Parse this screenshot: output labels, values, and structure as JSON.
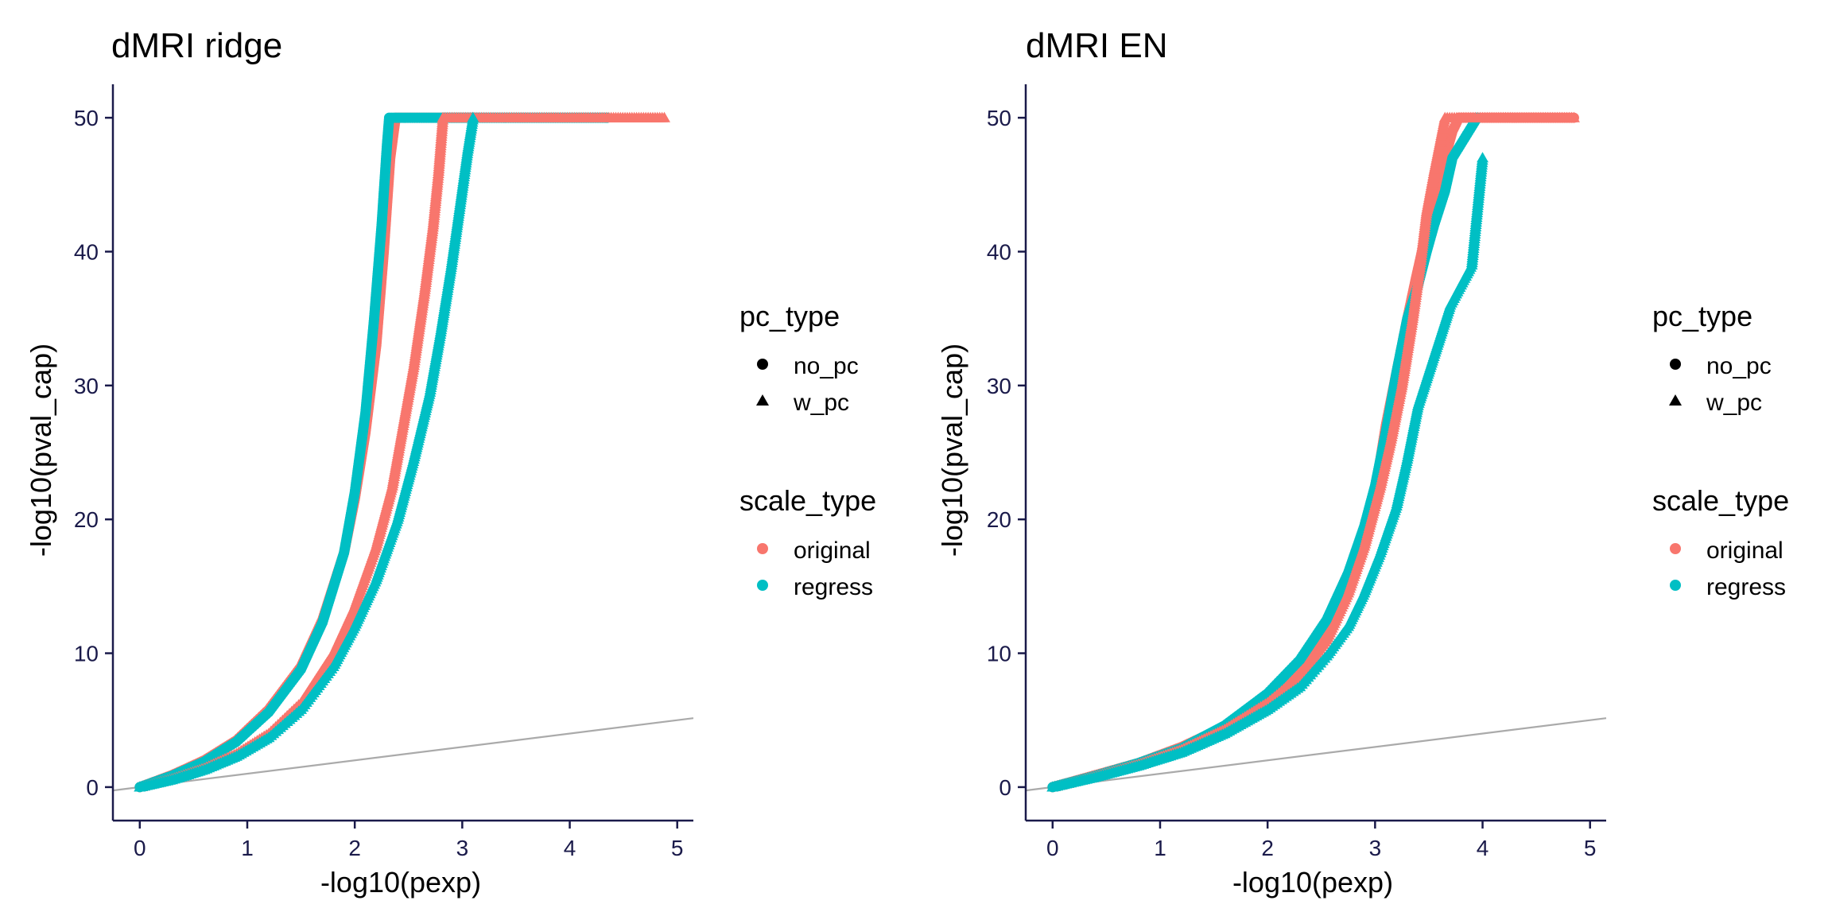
{
  "chart_data": [
    {
      "type": "scatter",
      "title": "dMRI ridge",
      "xlabel": "-log10(pexp)",
      "ylabel": "-log10(pval_cap)",
      "xlim": [
        -0.25,
        5.15
      ],
      "ylim": [
        -2.5,
        52.5
      ],
      "xticks": [
        "0",
        "1",
        "2",
        "3",
        "4",
        "5"
      ],
      "yticks": [
        "0",
        "10",
        "20",
        "30",
        "40",
        "50"
      ],
      "reference_line": {
        "x": [
          -0.25,
          5.15
        ],
        "y": [
          -0.25,
          5.15
        ],
        "color": "#aaaaaa"
      },
      "series": [
        {
          "name": "original / no_pc",
          "shape": "circle",
          "color": "#F8766D",
          "x": [
            0,
            0.3,
            0.6,
            0.9,
            1.2,
            1.5,
            1.7,
            1.9,
            2.0,
            2.1,
            2.2,
            2.27,
            2.33,
            2.38,
            2.42,
            2.5,
            2.6,
            2.8,
            3.0,
            3.1
          ],
          "y": [
            0,
            0.9,
            2.0,
            3.5,
            5.8,
            9.0,
            12.5,
            17.5,
            21.5,
            26.5,
            33,
            40,
            47,
            50,
            50,
            50,
            50,
            50,
            50,
            50
          ]
        },
        {
          "name": "regress / no_pc",
          "shape": "circle",
          "color": "#00BFC4",
          "x": [
            0,
            0.3,
            0.6,
            0.9,
            1.2,
            1.5,
            1.7,
            1.9,
            2.0,
            2.1,
            2.18,
            2.25,
            2.3,
            2.32,
            3.1,
            4.35
          ],
          "y": [
            0,
            0.85,
            1.9,
            3.4,
            5.6,
            8.8,
            12.3,
            17.5,
            22,
            28,
            35,
            42,
            48,
            50,
            50,
            50
          ]
        },
        {
          "name": "original / w_pc",
          "shape": "triangle",
          "color": "#F8766D",
          "x": [
            0,
            0.3,
            0.6,
            0.9,
            1.2,
            1.5,
            1.8,
            2.0,
            2.2,
            2.35,
            2.45,
            2.55,
            2.65,
            2.73,
            2.78,
            2.82,
            3.2,
            4.0,
            4.3,
            4.6,
            4.88
          ],
          "y": [
            0,
            0.6,
            1.4,
            2.5,
            4.0,
            6.3,
            10,
            13.5,
            18,
            22.5,
            27,
            31.5,
            37,
            42,
            46,
            50,
            50,
            50,
            50,
            50,
            50
          ]
        },
        {
          "name": "regress / w_pc",
          "shape": "triangle",
          "color": "#00BFC4",
          "x": [
            0,
            0.3,
            0.6,
            0.9,
            1.2,
            1.5,
            1.8,
            2.0,
            2.2,
            2.4,
            2.55,
            2.7,
            2.8,
            2.9,
            2.98,
            3.05,
            3.1
          ],
          "y": [
            0,
            0.55,
            1.3,
            2.3,
            3.7,
            5.8,
            9,
            12,
            15.5,
            20,
            24.5,
            29.5,
            34,
            39,
            43.5,
            47.5,
            50
          ]
        }
      ]
    },
    {
      "type": "scatter",
      "title": "dMRI EN",
      "xlabel": "-log10(pexp)",
      "ylabel": "-log10(pval_cap)",
      "xlim": [
        -0.25,
        5.15
      ],
      "ylim": [
        -2.5,
        52.5
      ],
      "xticks": [
        "0",
        "1",
        "2",
        "3",
        "4",
        "5"
      ],
      "yticks": [
        "0",
        "10",
        "20",
        "30",
        "40",
        "50"
      ],
      "reference_line": {
        "x": [
          -0.25,
          5.15
        ],
        "y": [
          -0.25,
          5.15
        ],
        "color": "#aaaaaa"
      },
      "series": [
        {
          "name": "original / no_pc",
          "shape": "circle",
          "color": "#F8766D",
          "x": [
            0,
            0.4,
            0.8,
            1.2,
            1.6,
            2.0,
            2.3,
            2.55,
            2.75,
            2.9,
            3.0,
            3.1,
            3.2,
            3.3,
            3.38,
            3.45,
            3.52,
            3.6,
            3.65,
            3.72,
            3.78,
            4.0,
            4.4,
            4.85
          ],
          "y": [
            0,
            0.9,
            1.8,
            3.0,
            4.5,
            6.5,
            8.7,
            11.5,
            15,
            18,
            22,
            27,
            31,
            35,
            38,
            40.5,
            42,
            45,
            47,
            49,
            50,
            50,
            50,
            50
          ]
        },
        {
          "name": "regress / no_pc",
          "shape": "circle",
          "color": "#00BFC4",
          "x": [
            0,
            0.4,
            0.8,
            1.2,
            1.6,
            2.0,
            2.3,
            2.55,
            2.75,
            2.9,
            3.0,
            3.1,
            3.2,
            3.3,
            3.4,
            3.48,
            3.55,
            3.65,
            3.72,
            3.95
          ],
          "y": [
            0,
            0.85,
            1.8,
            2.9,
            4.6,
            7.0,
            9.5,
            12.5,
            16,
            19.5,
            22.5,
            26.5,
            31,
            35,
            37.5,
            40,
            42,
            44.5,
            47,
            50
          ]
        },
        {
          "name": "original / w_pc",
          "shape": "triangle",
          "color": "#F8766D",
          "x": [
            0,
            0.4,
            0.8,
            1.2,
            1.6,
            2.0,
            2.3,
            2.55,
            2.75,
            2.9,
            3.05,
            3.15,
            3.25,
            3.35,
            3.42,
            3.48,
            3.55,
            3.6,
            3.65,
            4.0,
            4.3,
            4.85
          ],
          "y": [
            0,
            0.8,
            1.7,
            2.8,
            4.3,
            6.3,
            8.3,
            11,
            14.5,
            18,
            22.5,
            26,
            30,
            35,
            39,
            43,
            46,
            48,
            50,
            50,
            50,
            50
          ]
        },
        {
          "name": "regress / w_pc",
          "shape": "triangle",
          "color": "#00BFC4",
          "x": [
            0,
            0.4,
            0.8,
            1.2,
            1.6,
            2.0,
            2.3,
            2.55,
            2.75,
            2.9,
            3.05,
            3.2,
            3.3,
            3.4,
            3.5,
            3.6,
            3.7,
            3.8,
            3.9,
            4.0
          ],
          "y": [
            0,
            0.75,
            1.6,
            2.6,
            4.0,
            5.8,
            7.5,
            9.8,
            12,
            14.5,
            17.5,
            21,
            24.5,
            28.5,
            31,
            33.5,
            36,
            37.5,
            39,
            47
          ]
        }
      ]
    }
  ],
  "legend": {
    "shape_title": "pc_type",
    "shape_items": [
      {
        "label": "no_pc",
        "shape": "circle"
      },
      {
        "label": "w_pc",
        "shape": "triangle"
      }
    ],
    "color_title": "scale_type",
    "color_items": [
      {
        "label": "original",
        "color": "#F8766D"
      },
      {
        "label": "regress",
        "color": "#00BFC4"
      }
    ]
  }
}
